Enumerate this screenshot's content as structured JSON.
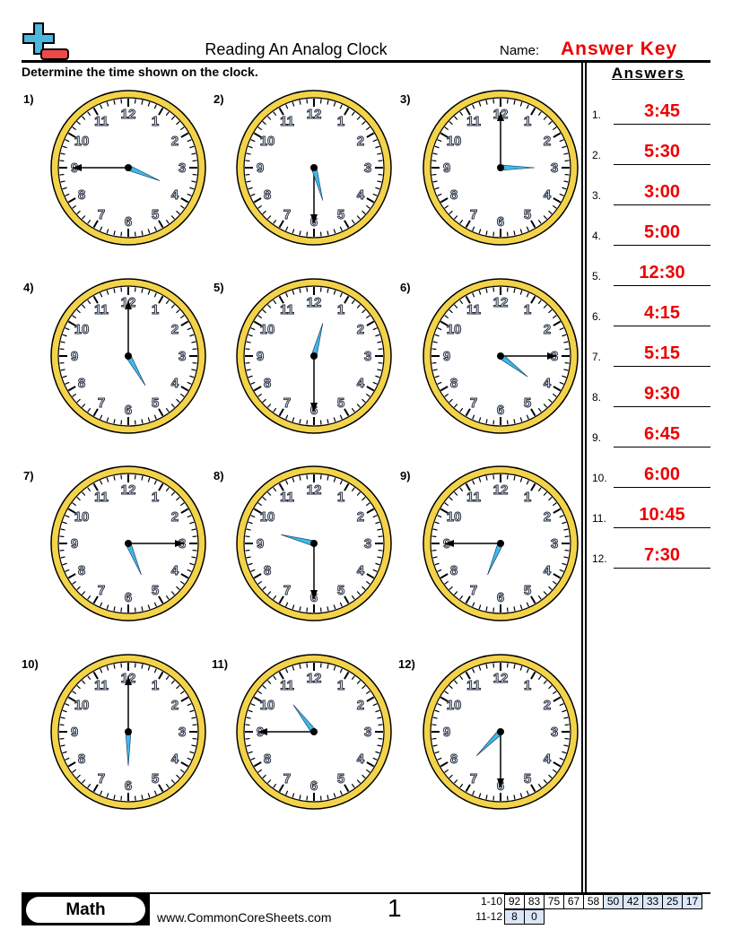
{
  "header": {
    "title": "Reading An Analog Clock",
    "name_label": "Name:",
    "name_value": "Answer Key",
    "logo_icon": "plus-minus-logo"
  },
  "instructions": "Determine the time shown on the clock.",
  "answers_heading": "Answers",
  "problems": [
    {
      "num": "1)",
      "ans_num": "1.",
      "answer": "3:45",
      "h": 3,
      "m": 45
    },
    {
      "num": "2)",
      "ans_num": "2.",
      "answer": "5:30",
      "h": 5,
      "m": 30
    },
    {
      "num": "3)",
      "ans_num": "3.",
      "answer": "3:00",
      "h": 3,
      "m": 0
    },
    {
      "num": "4)",
      "ans_num": "4.",
      "answer": "5:00",
      "h": 5,
      "m": 0
    },
    {
      "num": "5)",
      "ans_num": "5.",
      "answer": "12:30",
      "h": 12,
      "m": 30
    },
    {
      "num": "6)",
      "ans_num": "6.",
      "answer": "4:15",
      "h": 4,
      "m": 15
    },
    {
      "num": "7)",
      "ans_num": "7.",
      "answer": "5:15",
      "h": 5,
      "m": 15
    },
    {
      "num": "8)",
      "ans_num": "8.",
      "answer": "9:30",
      "h": 9,
      "m": 30
    },
    {
      "num": "9)",
      "ans_num": "9.",
      "answer": "6:45",
      "h": 6,
      "m": 45
    },
    {
      "num": "10)",
      "ans_num": "10.",
      "answer": "6:00",
      "h": 6,
      "m": 0
    },
    {
      "num": "11)",
      "ans_num": "11.",
      "answer": "10:45",
      "h": 10,
      "m": 45
    },
    {
      "num": "12)",
      "ans_num": "12.",
      "answer": "7:30",
      "h": 7,
      "m": 30
    }
  ],
  "colors": {
    "answer": "#ee0000",
    "clock_rim": "#f3d34a",
    "hour_hand": "#3fb8e8",
    "score_highlight": "#dbe6f7"
  },
  "footer": {
    "subject": "Math",
    "website": "www.CommonCoreSheets.com",
    "page": "1",
    "scores": [
      {
        "label": "1-10",
        "values": [
          "92",
          "83",
          "75",
          "67",
          "58",
          "50",
          "42",
          "33",
          "25",
          "17"
        ],
        "highlight_from": 5
      },
      {
        "label": "11-12",
        "values": [
          "8",
          "0"
        ],
        "highlight_from": 0
      }
    ]
  }
}
